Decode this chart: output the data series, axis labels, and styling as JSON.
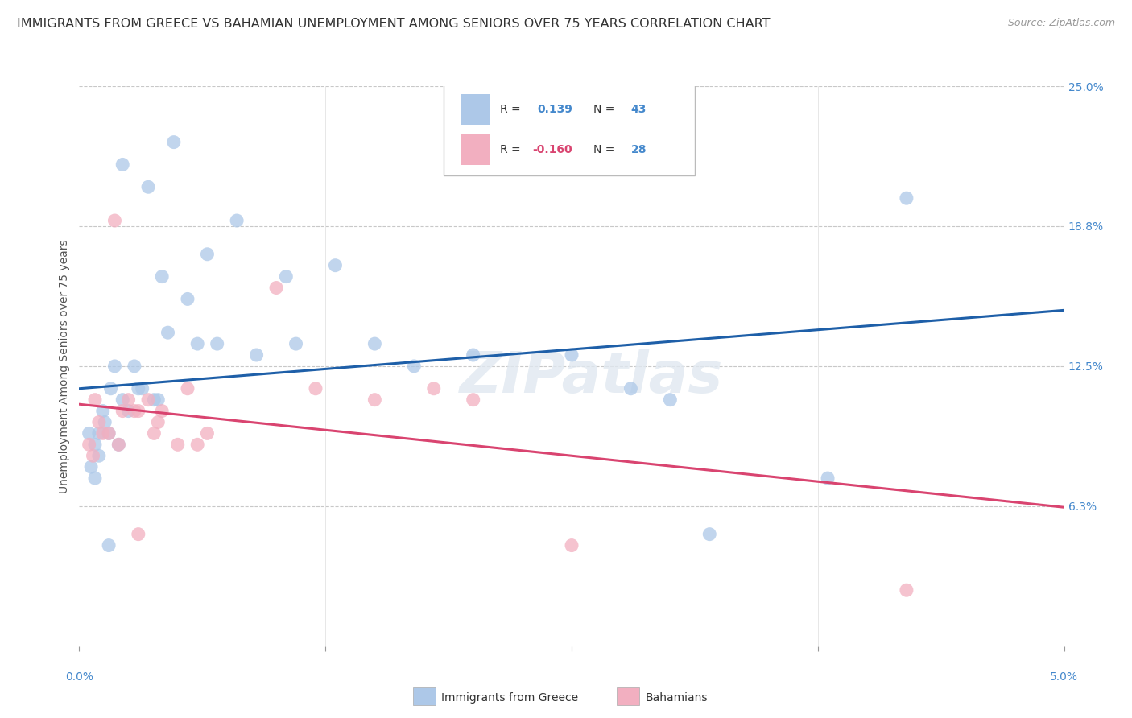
{
  "title": "IMMIGRANTS FROM GREECE VS BAHAMIAN UNEMPLOYMENT AMONG SENIORS OVER 75 YEARS CORRELATION CHART",
  "source": "Source: ZipAtlas.com",
  "ylabel": "Unemployment Among Seniors over 75 years",
  "xmin": 0.0,
  "xmax": 5.0,
  "ymin": 0.0,
  "ymax": 25.0,
  "blue_color": "#adc8e8",
  "pink_color": "#f2afc0",
  "line_blue": "#1e5fa8",
  "line_pink": "#d94470",
  "watermark": "ZIPatlas",
  "blue_scatter_x": [
    0.05,
    0.06,
    0.08,
    0.08,
    0.1,
    0.1,
    0.12,
    0.13,
    0.15,
    0.16,
    0.18,
    0.2,
    0.22,
    0.22,
    0.25,
    0.28,
    0.3,
    0.32,
    0.35,
    0.38,
    0.4,
    0.42,
    0.45,
    0.48,
    0.55,
    0.6,
    0.65,
    0.7,
    0.8,
    0.9,
    1.05,
    1.1,
    1.3,
    1.5,
    1.7,
    2.0,
    2.5,
    2.8,
    3.0,
    3.2,
    3.8,
    4.2,
    0.15
  ],
  "blue_scatter_y": [
    9.5,
    8.0,
    9.0,
    7.5,
    8.5,
    9.5,
    10.5,
    10.0,
    9.5,
    11.5,
    12.5,
    9.0,
    11.0,
    21.5,
    10.5,
    12.5,
    11.5,
    11.5,
    20.5,
    11.0,
    11.0,
    16.5,
    14.0,
    22.5,
    15.5,
    13.5,
    17.5,
    13.5,
    19.0,
    13.0,
    16.5,
    13.5,
    17.0,
    13.5,
    12.5,
    13.0,
    13.0,
    11.5,
    11.0,
    5.0,
    7.5,
    20.0,
    4.5
  ],
  "pink_scatter_x": [
    0.05,
    0.07,
    0.08,
    0.1,
    0.12,
    0.15,
    0.18,
    0.2,
    0.22,
    0.25,
    0.28,
    0.3,
    0.35,
    0.38,
    0.4,
    0.42,
    0.5,
    0.55,
    0.6,
    0.65,
    1.0,
    1.2,
    1.5,
    1.8,
    2.0,
    2.5,
    4.2,
    0.3
  ],
  "pink_scatter_y": [
    9.0,
    8.5,
    11.0,
    10.0,
    9.5,
    9.5,
    19.0,
    9.0,
    10.5,
    11.0,
    10.5,
    10.5,
    11.0,
    9.5,
    10.0,
    10.5,
    9.0,
    11.5,
    9.0,
    9.5,
    16.0,
    11.5,
    11.0,
    11.5,
    11.0,
    4.5,
    2.5,
    5.0
  ],
  "blue_line_x0": 0.0,
  "blue_line_x1": 5.0,
  "blue_line_y0": 11.5,
  "blue_line_y1": 15.0,
  "pink_line_x0": 0.0,
  "pink_line_x1": 5.0,
  "pink_line_y0": 10.8,
  "pink_line_y1": 6.2,
  "title_fontsize": 11.5,
  "source_fontsize": 9,
  "ylabel_fontsize": 10,
  "scatter_size": 150,
  "scatter_alpha": 0.75
}
